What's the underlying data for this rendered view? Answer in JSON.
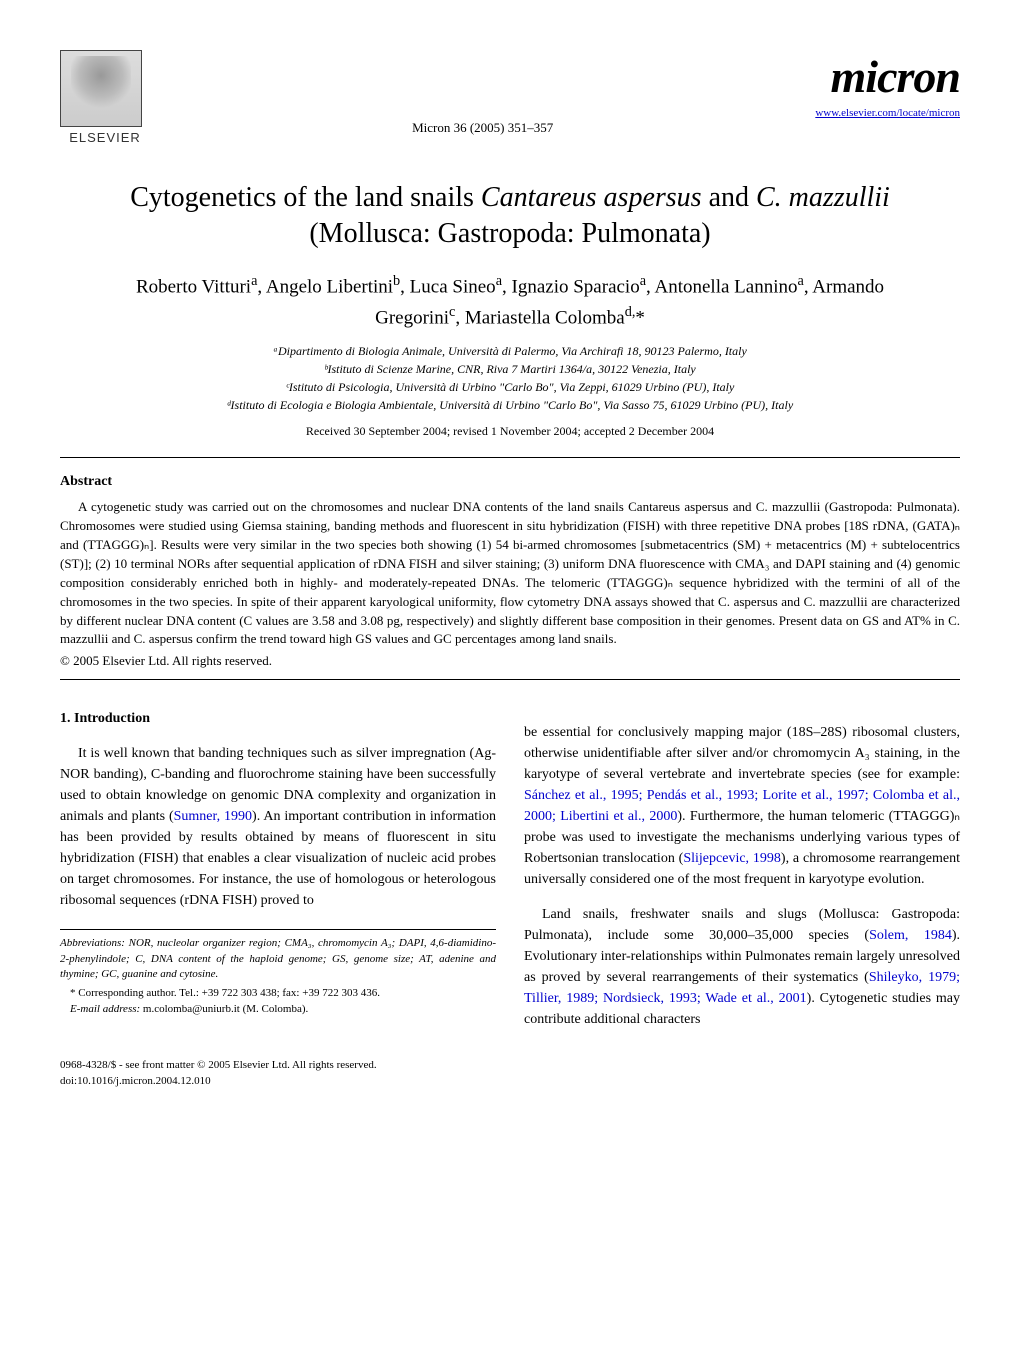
{
  "header": {
    "publisher_label": "ELSEVIER",
    "citation": "Micron 36 (2005) 351–357",
    "journal_logo": "micron",
    "journal_url": "www.elsevier.com/locate/micron"
  },
  "title_line1": "Cytogenetics of the land snails ",
  "title_species1": "Cantareus aspersus",
  "title_mid": " and ",
  "title_species2": "C. mazzullii",
  "title_line2": "(Mollusca: Gastropoda: Pulmonata)",
  "authors_html": "Roberto Vitturi<sup>a</sup>, Angelo Libertini<sup>b</sup>, Luca Sineo<sup>a</sup>, Ignazio Sparacio<sup>a</sup>, Antonella Lannino<sup>a</sup>, Armando Gregorini<sup>c</sup>, Mariastella Colomba<sup>d,</sup>*",
  "affiliations": [
    "ᵃDipartimento di Biologia Animale, Università di Palermo, Via Archirafi 18, 90123 Palermo, Italy",
    "ᵇIstituto di Scienze Marine, CNR, Riva 7 Martiri 1364/a, 30122 Venezia, Italy",
    "ᶜIstituto di Psicologia, Università di Urbino \"Carlo Bo\", Via Zeppi, 61029 Urbino (PU), Italy",
    "ᵈIstituto di Ecologia e Biologia Ambientale, Università di Urbino \"Carlo Bo\", Via Sasso 75, 61029 Urbino (PU), Italy"
  ],
  "received": "Received 30 September 2004; revised 1 November 2004; accepted 2 December 2004",
  "abstract_heading": "Abstract",
  "abstract_body": "A cytogenetic study was carried out on the chromosomes and nuclear DNA contents of the land snails Cantareus aspersus and C. mazzullii (Gastropoda: Pulmonata). Chromosomes were studied using Giemsa staining, banding methods and fluorescent in situ hybridization (FISH) with three repetitive DNA probes [18S rDNA, (GATA)ₙ and (TTAGGG)ₙ]. Results were very similar in the two species both showing (1) 54 bi-armed chromosomes [submetacentrics (SM) + metacentrics (M) + subtelocentrics (ST)]; (2) 10 terminal NORs after sequential application of rDNA FISH and silver staining; (3) uniform DNA fluorescence with CMA₃ and DAPI staining and (4) genomic composition considerably enriched both in highly- and moderately-repeated DNAs. The telomeric (TTAGGG)ₙ sequence hybridized with the termini of all of the chromosomes in the two species. In spite of their apparent karyological uniformity, flow cytometry DNA assays showed that C. aspersus and C. mazzullii are characterized by different nuclear DNA content (C values are 3.58 and 3.08 pg, respectively) and slightly different base composition in their genomes. Present data on GS and AT% in C. mazzullii and C. aspersus confirm the trend toward high GS values and GC percentages among land snails.",
  "copyright": "© 2005 Elsevier Ltd. All rights reserved.",
  "section1_heading": "1. Introduction",
  "col_left_p1": "It is well known that banding techniques such as silver impregnation (Ag-NOR banding), C-banding and fluorochrome staining have been successfully used to obtain knowledge on genomic DNA complexity and organization in animals and plants (",
  "col_left_cite1": "Sumner, 1990",
  "col_left_p1b": "). An important contribution in information has been provided by results obtained by means of fluorescent in situ hybridization (FISH) that enables a clear visualization of nucleic acid probes on target chromosomes. For instance, the use of homologous or heterologous ribosomal sequences (rDNA FISH) proved to",
  "col_right_p1a": "be essential for conclusively mapping major (18S–28S) ribosomal clusters, otherwise unidentifiable after silver and/or chromomycin A₃ staining, in the karyotype of several vertebrate and invertebrate species (see for example: ",
  "col_right_cite1": "Sánchez et al., 1995; Pendás et al., 1993; Lorite et al., 1997; Colomba et al., 2000; Libertini et al., 2000",
  "col_right_p1b": "). Furthermore, the human telomeric (TTAGGG)ₙ probe was used to investigate the mechanisms underlying various types of Robertsonian translocation (",
  "col_right_cite2": "Slijepcevic, 1998",
  "col_right_p1c": "), a chromosome rearrangement universally considered one of the most frequent in karyotype evolution.",
  "col_right_p2a": "Land snails, freshwater snails and slugs (Mollusca: Gastropoda: Pulmonata), include some 30,000–35,000 species (",
  "col_right_cite3": "Solem, 1984",
  "col_right_p2b": "). Evolutionary inter-relationships within Pulmonates remain largely unresolved as proved by several rearrangements of their systematics (",
  "col_right_cite4": "Shileyko, 1979; Tillier, 1989; Nordsieck, 1993; Wade et al., 2001",
  "col_right_p2c": "). Cytogenetic studies may contribute additional characters",
  "footnote_abbrev": "Abbreviations: NOR, nucleolar organizer region; CMA₃, chromomycin A₃; DAPI, 4,6-diamidino-2-phenylindole; C, DNA content of the haploid genome; GS, genome size; AT, adenine and thymine; GC, guanine and cytosine.",
  "footnote_corr": "* Corresponding author. Tel.: +39 722 303 438; fax: +39 722 303 436.",
  "footnote_email_label": "E-mail address:",
  "footnote_email": "m.colomba@uniurb.it (M. Colomba).",
  "footer_issn": "0968-4328/$ - see front matter © 2005 Elsevier Ltd. All rights reserved.",
  "footer_doi": "doi:10.1016/j.micron.2004.12.010"
}
